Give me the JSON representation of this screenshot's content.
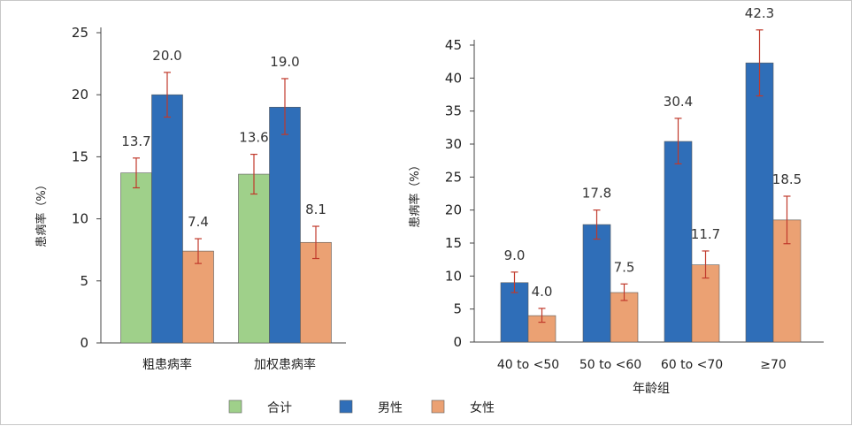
{
  "colors": {
    "total": "#9fd08a",
    "male": "#2f6eb8",
    "female": "#eba173",
    "error": "#c0392b"
  },
  "legend": [
    {
      "key": "total",
      "label": "合计"
    },
    {
      "key": "male",
      "label": "男性"
    },
    {
      "key": "female",
      "label": "女性"
    }
  ],
  "chart_data": [
    {
      "type": "bar",
      "ylabel": "患病率（%）",
      "xlabel": "",
      "ylim": [
        0,
        25
      ],
      "yticks": [
        0,
        5,
        10,
        15,
        20,
        25
      ],
      "categories": [
        "粗患病率",
        "加权患病率"
      ],
      "series": [
        {
          "name": "合计",
          "key": "total",
          "values": [
            13.7,
            13.6
          ],
          "error": [
            [
              12.5,
              14.9
            ],
            [
              12.0,
              15.2
            ]
          ],
          "labels": [
            "13.7",
            "13.6"
          ]
        },
        {
          "name": "男性",
          "key": "male",
          "values": [
            20.0,
            19.0
          ],
          "error": [
            [
              18.2,
              21.8
            ],
            [
              16.8,
              21.3
            ]
          ],
          "labels": [
            "20.0",
            "19.0"
          ]
        },
        {
          "name": "女性",
          "key": "female",
          "values": [
            7.4,
            8.1
          ],
          "error": [
            [
              6.4,
              8.4
            ],
            [
              6.8,
              9.4
            ]
          ],
          "labels": [
            "7.4",
            "8.1"
          ]
        }
      ]
    },
    {
      "type": "bar",
      "ylabel": "患病率（%）",
      "xlabel": "年龄组",
      "ylim": [
        0,
        45
      ],
      "yticks": [
        0,
        5,
        10,
        15,
        20,
        25,
        30,
        35,
        40,
        45
      ],
      "categories": [
        "40 to <50",
        "50 to <60",
        "60 to <70",
        "≥70"
      ],
      "series": [
        {
          "name": "男性",
          "key": "male",
          "values": [
            9.0,
            17.8,
            30.4,
            42.3
          ],
          "error": [
            [
              7.5,
              10.6
            ],
            [
              15.6,
              20.0
            ],
            [
              27.0,
              33.9
            ],
            [
              37.3,
              47.3
            ]
          ],
          "labels": [
            "9.0",
            "17.8",
            "30.4",
            "42.3"
          ]
        },
        {
          "name": "女性",
          "key": "female",
          "values": [
            4.0,
            7.5,
            11.7,
            18.5
          ],
          "error": [
            [
              3.0,
              5.1
            ],
            [
              6.3,
              8.8
            ],
            [
              9.7,
              13.8
            ],
            [
              14.9,
              22.1
            ]
          ],
          "labels": [
            "4.0",
            "7.5",
            "11.7",
            "18.5"
          ]
        }
      ]
    }
  ]
}
